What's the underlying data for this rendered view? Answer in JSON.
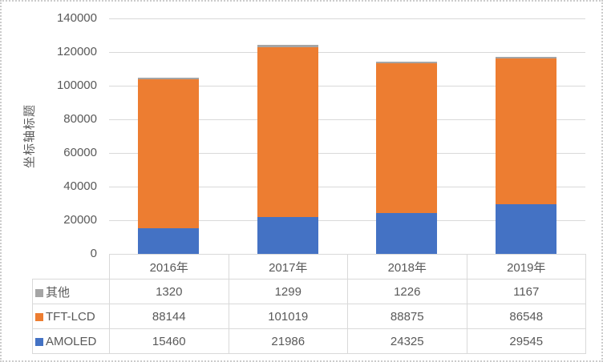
{
  "frame": {
    "background": "#FFFFFF",
    "border_color": "#CCCCCC"
  },
  "chart_data": {
    "type": "bar",
    "stacked": true,
    "title": "",
    "xlabel": "",
    "ylabel": "坐标轴标题",
    "categories": [
      "2016年",
      "2017年",
      "2018年",
      "2019年"
    ],
    "series": [
      {
        "name": "AMOLED",
        "color": "#4472C4",
        "values": [
          15460,
          21986,
          24325,
          29545
        ]
      },
      {
        "name": "TFT-LCD",
        "color": "#ED7D31",
        "values": [
          88144,
          101019,
          88875,
          86548
        ]
      },
      {
        "name": "其他",
        "color": "#A5A5A5",
        "values": [
          1320,
          1299,
          1226,
          1167
        ]
      }
    ],
    "totals": [
      104924,
      124304,
      114426,
      117260
    ],
    "ylim": [
      0,
      140000
    ],
    "ytick_step": 20000,
    "ytick_labels": [
      "0",
      "20000",
      "40000",
      "60000",
      "80000",
      "100000",
      "120000",
      "140000"
    ],
    "grid": true,
    "gridline_color": "#D9D9D9",
    "axis_text_color": "#595959",
    "legend_position": "data-table-left",
    "data_table": {
      "shown": true,
      "legend_keys": true,
      "border_color": "#D9D9D9",
      "row_order_top_to_bottom": [
        "其他",
        "TFT-LCD",
        "AMOLED"
      ]
    }
  }
}
